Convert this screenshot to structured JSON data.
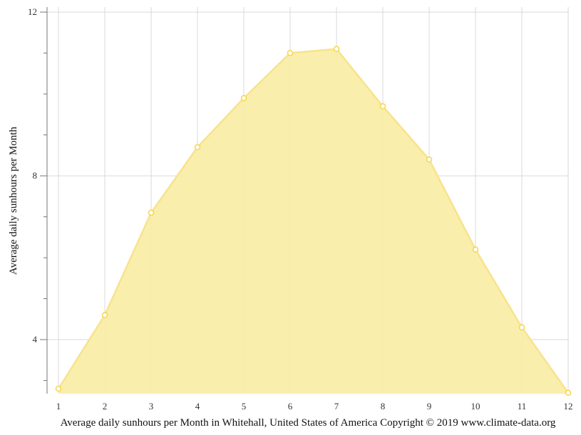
{
  "chart_data": {
    "type": "area",
    "title": "Average daily sunhours per Month in Whitehall, United States of America Copyright © 2019 www.climate-data.org",
    "xlabel": "",
    "ylabel": "Average daily sunhours per Month",
    "categories": [
      "1",
      "2",
      "3",
      "4",
      "5",
      "6",
      "7",
      "8",
      "9",
      "10",
      "11",
      "12"
    ],
    "series": [
      {
        "name": "Average daily sunhours",
        "values": [
          2.8,
          4.6,
          7.1,
          8.7,
          9.9,
          11.0,
          11.1,
          9.7,
          8.4,
          6.2,
          4.3,
          2.7
        ]
      }
    ],
    "y_ticks_major": [
      4,
      8,
      12
    ],
    "y_ticks_minor": [
      3,
      5,
      6,
      7,
      9,
      10,
      11
    ],
    "ylim": [
      2.68,
      12.1
    ],
    "grid": true,
    "legend": "none"
  },
  "colors": {
    "fill": "#faeda9",
    "line": "#f8e38c",
    "marker_stroke": "#f5d547",
    "marker_fill": "#ffffff",
    "grid": "#d9d9d9",
    "axis": "#777777"
  },
  "labels": {
    "caption": "Average daily sunhours per Month in Whitehall, United States of America Copyright © 2019 www.climate-data.org",
    "y_axis_title": "Average daily sunhours per Month"
  }
}
